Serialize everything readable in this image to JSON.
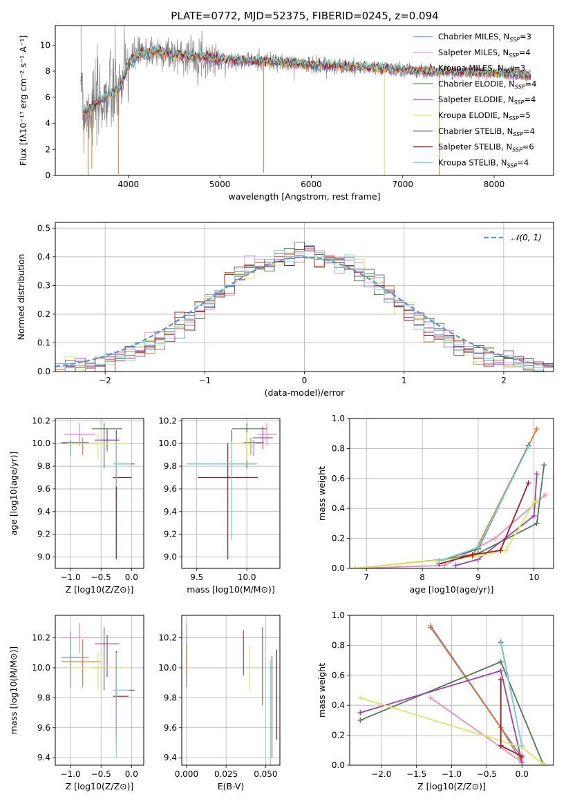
{
  "figure": {
    "title": "PLATE=0772, MJD=52375, FIBERID=0245, z=0.094"
  },
  "colors": {
    "chabrier_miles": "#5b8fd6",
    "salpeter_miles": "#e98ac0",
    "kroupa_miles": "#e8772a",
    "chabrier_elodie": "#4a7a4a",
    "salpeter_elodie": "#9b3fb0",
    "kroupa_elodie": "#d6ea57",
    "chabrier_stelib": "#606060",
    "salpeter_stelib": "#a8141a",
    "kroupa_stelib": "#7ad8dc",
    "data_gray": "#808080",
    "normal_curve": "#5b8fd6"
  },
  "chart_data": [
    {
      "type": "line",
      "name": "spectrum",
      "xlabel": "wavelength [Angstrom, rest frame]",
      "ylabel": "Flux [fλ10⁻¹⁷ erg cm⁻² s⁻¹ A⁻¹]",
      "xlim": [
        3200,
        8650
      ],
      "ylim": [
        0,
        11.5
      ],
      "xticks": [
        4000,
        5000,
        6000,
        7000,
        8000
      ],
      "yticks": [
        0,
        2,
        4,
        6,
        8,
        10
      ],
      "grid": false,
      "legend_position": "top-right",
      "legend": [
        "Chabrier MILES, N_SSP=3",
        "Salpeter MILES, N_SSP=4",
        "Kroupa MILES, N_SSP=3",
        "Chabrier ELODIE, N_SSP=4",
        "Salpeter ELODIE, N_SSP=4",
        "Kroupa ELODIE, N_SSP=5",
        "Chabrier STELIB, N_SSP=4",
        "Salpeter STELIB, N_SSP=6",
        "Kroupa STELIB, N_SSP=4"
      ],
      "model_curve": {
        "x": [
          3500,
          3600,
          3700,
          3800,
          3900,
          4000,
          4100,
          4300,
          4500,
          4800,
          5000,
          5300,
          5600,
          6000,
          6300,
          6600,
          7000,
          7400,
          7800,
          8200,
          8400
        ],
        "y": [
          4.8,
          5.2,
          5.8,
          6.2,
          6.6,
          8.6,
          9.3,
          9.5,
          9.3,
          9.1,
          8.9,
          8.8,
          8.7,
          8.5,
          8.4,
          8.3,
          8.1,
          8.0,
          7.9,
          7.8,
          7.6
        ]
      }
    },
    {
      "type": "histogram",
      "name": "residuals",
      "xlabel": "(data-model)/error",
      "ylabel": "Normed distribution",
      "xlim": [
        -2.5,
        2.5
      ],
      "ylim": [
        0,
        0.52
      ],
      "xticks": [
        -2,
        -1,
        0,
        1,
        2
      ],
      "yticks": [
        0.0,
        0.1,
        0.2,
        0.3,
        0.4,
        0.5
      ],
      "grid": true,
      "legend_position": "top-right",
      "legend": [
        "𝒩(0, 1)"
      ],
      "bin_width": 0.1,
      "bin_start": -2.5,
      "base_heights": [
        0.02,
        0.02,
        0.025,
        0.03,
        0.035,
        0.04,
        0.05,
        0.06,
        0.075,
        0.09,
        0.11,
        0.13,
        0.155,
        0.18,
        0.21,
        0.24,
        0.27,
        0.31,
        0.34,
        0.36,
        0.37,
        0.38,
        0.39,
        0.4,
        0.41,
        0.42,
        0.4,
        0.39,
        0.38,
        0.37,
        0.35,
        0.33,
        0.3,
        0.27,
        0.24,
        0.21,
        0.18,
        0.15,
        0.13,
        0.11,
        0.09,
        0.075,
        0.06,
        0.05,
        0.04,
        0.035,
        0.03,
        0.025,
        0.02,
        0.02
      ]
    },
    {
      "type": "errorbar",
      "name": "age-vs-Z",
      "xlabel": "Z [log10(Z/Z⊙)]",
      "ylabel": "age  [log10(age/yr)]",
      "xlim": [
        -1.25,
        0.2
      ],
      "ylim": [
        8.9,
        10.22
      ],
      "xticks": [
        -1.0,
        -0.5,
        0.0
      ],
      "yticks": [
        9.0,
        9.2,
        9.4,
        9.6,
        9.8,
        10.0,
        10.2
      ],
      "grid": true,
      "points": [
        {
          "series": "chabrier_miles",
          "x": -1.0,
          "y": 10.01,
          "xerr": [
            0.15,
            0.3
          ],
          "yerr": [
            0.12,
            0.02
          ]
        },
        {
          "series": "salpeter_miles",
          "x": -0.85,
          "y": 10.08,
          "xerr": [
            0.25,
            0.25
          ],
          "yerr": [
            0.1,
            0.1
          ]
        },
        {
          "series": "kroupa_miles",
          "x": -0.8,
          "y": 10.0,
          "xerr": [
            0.35,
            0.3
          ],
          "yerr": [
            0.1,
            0.05
          ]
        },
        {
          "series": "chabrier_elodie",
          "x": -0.45,
          "y": 10.13,
          "xerr": [
            0.2,
            0.3
          ],
          "yerr": [
            0.35,
            0.05
          ]
        },
        {
          "series": "salpeter_elodie",
          "x": -0.4,
          "y": 10.03,
          "xerr": [
            0.2,
            0.2
          ],
          "yerr": [
            0.1,
            0.1
          ]
        },
        {
          "series": "kroupa_elodie",
          "x": -0.55,
          "y": 10.0,
          "xerr": [
            0.5,
            0.5
          ],
          "yerr": [
            0.15,
            0.1
          ]
        },
        {
          "series": "chabrier_stelib",
          "x": -0.25,
          "y": 9.82,
          "xerr": [
            0.05,
            0.3
          ],
          "yerr": [
            0.3,
            0.3
          ]
        },
        {
          "series": "salpeter_stelib",
          "x": -0.25,
          "y": 9.7,
          "xerr": [
            0.05,
            0.25
          ],
          "yerr": [
            0.72,
            0.3
          ]
        },
        {
          "series": "kroupa_stelib",
          "x": -0.25,
          "y": 9.82,
          "xerr": [
            0.05,
            0.25
          ],
          "yerr": [
            0.2,
            0.2
          ]
        }
      ]
    },
    {
      "type": "errorbar",
      "name": "age-vs-mass",
      "xlabel": "mass [log10(M/M⊙)]",
      "ylabel": "",
      "xlim": [
        9.35,
        10.33
      ],
      "ylim": [
        8.9,
        10.22
      ],
      "xticks": [
        9.5,
        10.0
      ],
      "yticks": [
        9.0,
        9.2,
        9.4,
        9.6,
        9.8,
        10.0,
        10.2
      ],
      "grid": true,
      "points": [
        {
          "series": "chabrier_miles",
          "x": 10.07,
          "y": 10.01,
          "xerr": [
            0.1,
            0.1
          ],
          "yerr": [
            0.12,
            0.02
          ]
        },
        {
          "series": "salpeter_miles",
          "x": 10.2,
          "y": 10.08,
          "xerr": [
            0.1,
            0.1
          ],
          "yerr": [
            0.1,
            0.1
          ]
        },
        {
          "series": "kroupa_miles",
          "x": 10.04,
          "y": 10.0,
          "xerr": [
            0.1,
            0.1
          ],
          "yerr": [
            0.1,
            0.05
          ]
        },
        {
          "series": "chabrier_elodie",
          "x": 10.0,
          "y": 10.13,
          "xerr": [
            0.15,
            0.2
          ],
          "yerr": [
            0.35,
            0.05
          ]
        },
        {
          "series": "salpeter_elodie",
          "x": 10.16,
          "y": 10.05,
          "xerr": [
            0.1,
            0.1
          ],
          "yerr": [
            0.1,
            0.1
          ]
        },
        {
          "series": "kroupa_elodie",
          "x": 10.0,
          "y": 10.0,
          "xerr": [
            0.15,
            0.1
          ],
          "yerr": [
            0.15,
            0.1
          ]
        },
        {
          "series": "chabrier_stelib",
          "x": 9.85,
          "y": 9.82,
          "xerr": [
            0.45,
            0.25
          ],
          "yerr": [
            0.67,
            0.3
          ]
        },
        {
          "series": "salpeter_stelib",
          "x": 9.81,
          "y": 9.7,
          "xerr": [
            0.3,
            0.3
          ],
          "yerr": [
            0.72,
            0.3
          ]
        },
        {
          "series": "kroupa_stelib",
          "x": 9.85,
          "y": 9.82,
          "xerr": [
            0.45,
            0.25
          ],
          "yerr": [
            0.67,
            0.2
          ]
        }
      ]
    },
    {
      "type": "line",
      "name": "mass-weight-vs-age",
      "xlabel": "age  [log10(age/yr)]",
      "ylabel": "mass weight",
      "xlim": [
        6.7,
        10.35
      ],
      "ylim": [
        0,
        1.0
      ],
      "xticks": [
        7,
        8,
        9,
        10
      ],
      "yticks": [
        0.0,
        0.2,
        0.4,
        0.6,
        0.8,
        1.0
      ],
      "grid": true,
      "series": [
        {
          "key": "chabrier_miles",
          "x": [
            8.3,
            9.0,
            9.9
          ],
          "y": [
            0.05,
            0.13,
            0.82
          ]
        },
        {
          "key": "salpeter_miles",
          "x": [
            6.8,
            8.4,
            9.3,
            10.2
          ],
          "y": [
            0.0,
            0.02,
            0.2,
            0.49
          ]
        },
        {
          "key": "kroupa_miles",
          "x": [
            6.8,
            8.9,
            10.05
          ],
          "y": [
            0.0,
            0.08,
            0.93
          ]
        },
        {
          "key": "chabrier_elodie",
          "x": [
            8.3,
            9.0,
            10.05,
            10.18
          ],
          "y": [
            0.05,
            0.1,
            0.3,
            0.69
          ]
        },
        {
          "key": "salpeter_elodie",
          "x": [
            8.6,
            9.0,
            10.0,
            10.05
          ],
          "y": [
            0.02,
            0.06,
            0.35,
            0.63
          ]
        },
        {
          "key": "kroupa_elodie",
          "x": [
            6.8,
            9.0,
            9.5,
            10.0,
            10.05
          ],
          "y": [
            0.0,
            0.08,
            0.12,
            0.44,
            0.45
          ]
        },
        {
          "key": "chabrier_stelib",
          "x": [
            8.3,
            9.0,
            9.9
          ],
          "y": [
            0.05,
            0.13,
            0.82
          ]
        },
        {
          "key": "salpeter_stelib",
          "x": [
            8.3,
            8.9,
            9.4,
            9.9
          ],
          "y": [
            0.03,
            0.09,
            0.12,
            0.57
          ]
        },
        {
          "key": "kroupa_stelib",
          "x": [
            8.3,
            9.0,
            9.9
          ],
          "y": [
            0.05,
            0.14,
            0.81
          ]
        }
      ]
    },
    {
      "type": "errorbar",
      "name": "mass-vs-Z",
      "xlabel": "Z [log10(Z/Z⊙)]",
      "ylabel": "mass [log10(M/M⊙)]",
      "xlim": [
        -1.25,
        0.2
      ],
      "ylim": [
        9.35,
        10.35
      ],
      "xticks": [
        -1.0,
        -0.5,
        0.0
      ],
      "yticks": [
        9.4,
        9.6,
        9.8,
        10.0,
        10.2
      ],
      "grid": true,
      "points": [
        {
          "series": "chabrier_miles",
          "x": -1.0,
          "y": 10.07,
          "xerr": [
            0.15,
            0.3
          ],
          "yerr": [
            0.2,
            0.17
          ]
        },
        {
          "series": "salpeter_miles",
          "x": -0.85,
          "y": 10.2,
          "xerr": [
            0.3,
            0.3
          ],
          "yerr": [
            0.1,
            0.1
          ]
        },
        {
          "series": "kroupa_miles",
          "x": -0.8,
          "y": 10.04,
          "xerr": [
            0.35,
            0.3
          ],
          "yerr": [
            0.17,
            0.15
          ]
        },
        {
          "series": "chabrier_elodie",
          "x": -0.45,
          "y": 10.0,
          "xerr": [
            0.2,
            0.3
          ],
          "yerr": [
            0.15,
            0.27
          ]
        },
        {
          "series": "salpeter_elodie",
          "x": -0.4,
          "y": 10.16,
          "xerr": [
            0.2,
            0.2
          ],
          "yerr": [
            0.22,
            0.06
          ]
        },
        {
          "series": "kroupa_elodie",
          "x": -0.55,
          "y": 10.0,
          "xerr": [
            0.5,
            0.5
          ],
          "yerr": [
            0.15,
            0.1
          ]
        },
        {
          "series": "chabrier_stelib",
          "x": -0.25,
          "y": 9.85,
          "xerr": [
            0.05,
            0.3
          ],
          "yerr": [
            0.35,
            0.25
          ]
        },
        {
          "series": "salpeter_stelib",
          "x": -0.25,
          "y": 9.81,
          "xerr": [
            0.05,
            0.2
          ],
          "yerr": [
            0.25,
            0.3
          ]
        },
        {
          "series": "kroupa_stelib",
          "x": -0.25,
          "y": 9.85,
          "xerr": [
            0.05,
            0.2
          ],
          "yerr": [
            0.45,
            0.25
          ]
        }
      ]
    },
    {
      "type": "errorbar",
      "name": "mass-vs-ebv",
      "xlabel": "E(B-V)",
      "ylabel": "",
      "xlim": [
        -0.003,
        0.059
      ],
      "ylim": [
        9.35,
        10.35
      ],
      "xticks": [
        0.0,
        0.025,
        0.05
      ],
      "xtick_labels": [
        "0.000",
        "0.025",
        "0.050"
      ],
      "yticks": [
        9.4,
        9.6,
        9.8,
        10.0,
        10.2
      ],
      "grid": true,
      "points": [
        {
          "series": "chabrier_miles",
          "x": 0.0,
          "y": 10.07,
          "yerr": [
            0.2,
            0.17
          ]
        },
        {
          "series": "salpeter_miles",
          "x": 0.0,
          "y": 10.2,
          "yerr": [
            0.1,
            0.1
          ]
        },
        {
          "series": "kroupa_miles",
          "x": 0.0,
          "y": 10.04,
          "yerr": [
            0.1,
            0.12
          ]
        },
        {
          "series": "salpeter_elodie",
          "x": 0.036,
          "y": 10.1,
          "yerr": [
            0.15,
            0.15
          ]
        },
        {
          "series": "kroupa_elodie",
          "x": 0.04,
          "y": 10.0,
          "yerr": [
            0.15,
            0.15
          ]
        },
        {
          "series": "chabrier_elodie",
          "x": 0.048,
          "y": 10.0,
          "yerr": [
            0.25,
            0.27
          ]
        },
        {
          "series": "chabrier_stelib",
          "x": 0.054,
          "y": 9.75,
          "yerr": [
            0.35,
            0.33
          ]
        },
        {
          "series": "kroupa_stelib",
          "x": 0.053,
          "y": 9.7,
          "yerr": [
            0.35,
            0.35
          ]
        },
        {
          "series": "salpeter_stelib",
          "x": 0.057,
          "y": 9.82,
          "yerr": [
            0.3,
            0.3
          ]
        }
      ]
    },
    {
      "type": "line",
      "name": "mass-weight-vs-Z",
      "xlabel": "Z [log10(Z/Z⊙)]",
      "ylabel": "mass weight",
      "xlim": [
        -2.45,
        0.45
      ],
      "ylim": [
        0,
        1.0
      ],
      "xticks": [
        -2.0,
        -1.5,
        -1.0,
        -0.5,
        0.0
      ],
      "yticks": [
        0.0,
        0.2,
        0.4,
        0.6,
        0.8,
        1.0
      ],
      "grid": true,
      "series": [
        {
          "key": "chabrier_miles",
          "x": [
            -1.3,
            0.0
          ],
          "y": [
            0.93,
            0.05
          ]
        },
        {
          "key": "salpeter_miles",
          "x": [
            -1.3,
            0.0
          ],
          "y": [
            0.45,
            0.02
          ]
        },
        {
          "key": "kroupa_miles",
          "x": [
            -1.3,
            -0.3,
            0.0
          ],
          "y": [
            0.92,
            0.25,
            0.02
          ]
        },
        {
          "key": "chabrier_elodie",
          "x": [
            -2.3,
            -0.3,
            0.3
          ],
          "y": [
            0.3,
            0.69,
            0.01
          ]
        },
        {
          "key": "salpeter_elodie",
          "x": [
            -2.3,
            -0.3,
            0.0
          ],
          "y": [
            0.35,
            0.63,
            0.02
          ]
        },
        {
          "key": "kroupa_elodie",
          "x": [
            -2.3,
            0.0,
            0.3
          ],
          "y": [
            0.45,
            0.12,
            0.01
          ]
        },
        {
          "key": "chabrier_stelib",
          "x": [
            -0.3,
            0.0
          ],
          "y": [
            0.82,
            0.13
          ]
        },
        {
          "key": "salpeter_stelib",
          "x": [
            -0.3,
            -0.3,
            0.0
          ],
          "y": [
            0.57,
            0.13,
            0.06
          ]
        },
        {
          "key": "kroupa_stelib",
          "x": [
            -0.3,
            0.0
          ],
          "y": [
            0.81,
            0.13
          ]
        }
      ]
    }
  ]
}
